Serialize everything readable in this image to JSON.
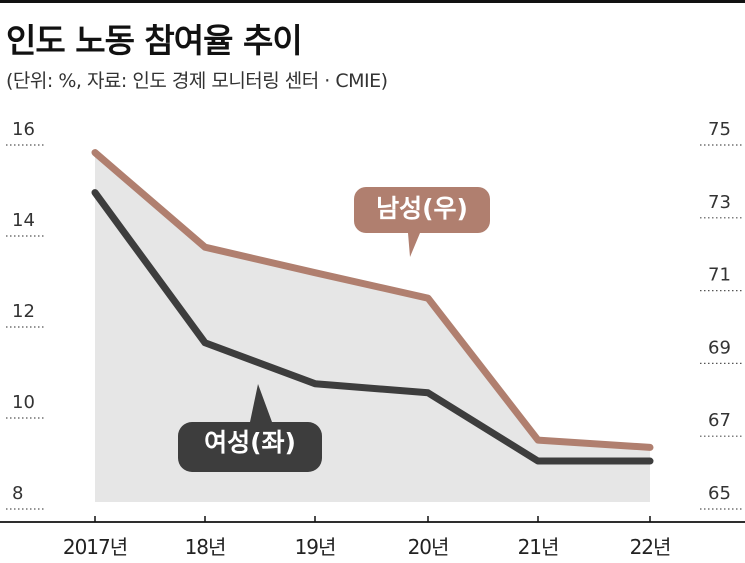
{
  "title": "인도 노동 참여율 추이",
  "subtitle": "(단위: %, 자료: 인도 경제 모니터링 센터 · CMIE)",
  "colors": {
    "male": "#b07f6f",
    "female": "#3d3d3d",
    "fill": "#e6e6e6",
    "grid": "#555555"
  },
  "chart_data": {
    "type": "line",
    "categories": [
      "2017년",
      "18년",
      "19년",
      "20년",
      "21년",
      "22년"
    ],
    "series": [
      {
        "name": "남성(우)",
        "axis": "right",
        "values": [
          74.6,
          72.0,
          71.3,
          70.6,
          66.7,
          66.5
        ]
      },
      {
        "name": "여성(좌)",
        "axis": "left",
        "values": [
          14.8,
          11.5,
          10.6,
          10.4,
          8.9,
          8.9
        ]
      }
    ],
    "left_axis": {
      "ylim": [
        8,
        16
      ],
      "ticks": [
        "16",
        "14",
        "12",
        "10",
        "8"
      ]
    },
    "right_axis": {
      "ylim": [
        65,
        75
      ],
      "ticks": [
        "75",
        "73",
        "71",
        "69",
        "67",
        "65"
      ]
    },
    "labels": {
      "male": "남성(우)",
      "female": "여성(좌)"
    },
    "grid": "dotted"
  }
}
